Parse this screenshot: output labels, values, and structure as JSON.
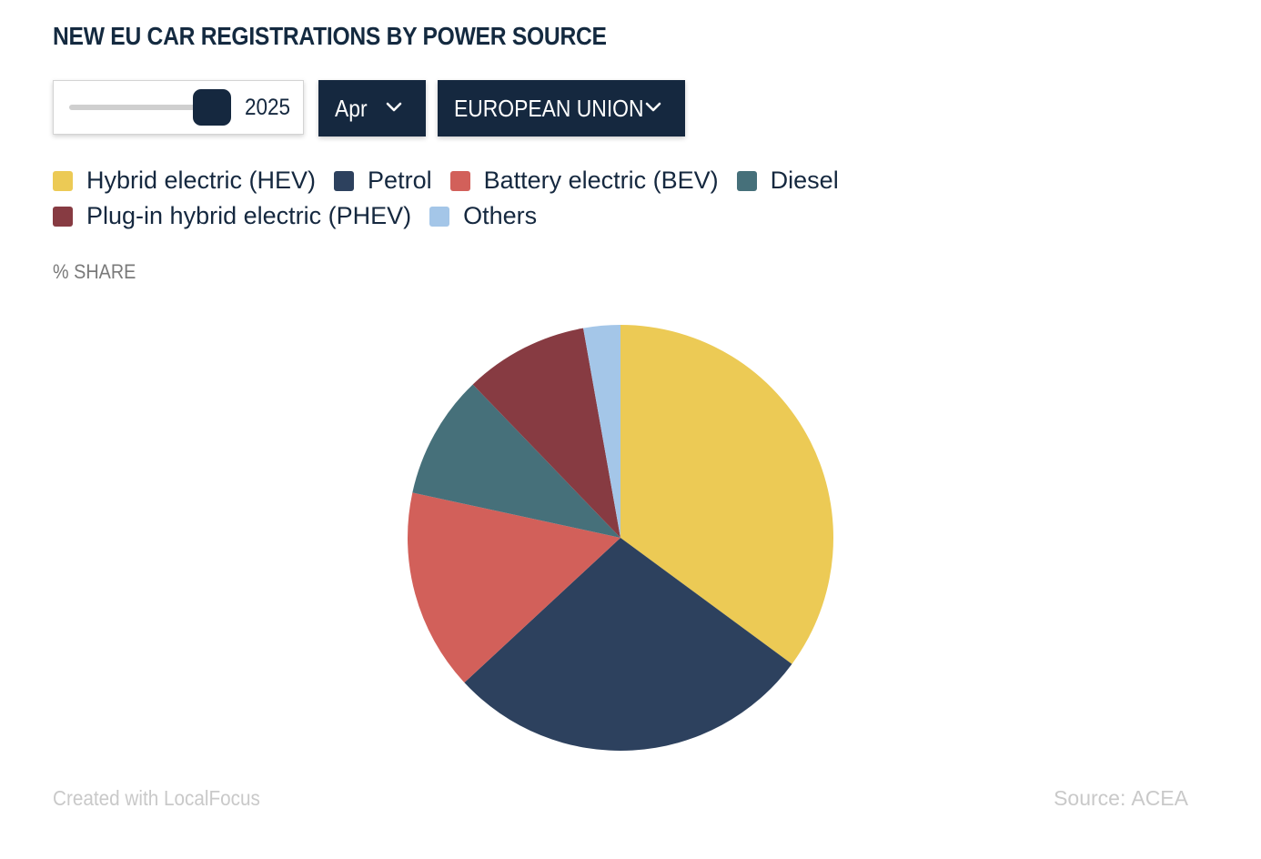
{
  "title": "NEW EU CAR REGISTRATIONS BY POWER SOURCE",
  "controls": {
    "year": "2025",
    "month": "Apr",
    "region": "EUROPEAN UNION"
  },
  "unit_label": "% SHARE",
  "footer": {
    "credit": "Created with LocalFocus",
    "source_label": "Source:",
    "source_value": "ACEA"
  },
  "chart_data": {
    "type": "pie",
    "title": "NEW EU CAR REGISTRATIONS BY POWER SOURCE",
    "unit": "% SHARE",
    "legend_position": "top-left",
    "categories": [
      "Hybrid electric (HEV)",
      "Petrol",
      "Battery electric (BEV)",
      "Diesel",
      "Plug-in hybrid electric (PHEV)",
      "Others"
    ],
    "values": [
      35.1,
      28.0,
      15.3,
      9.4,
      9.4,
      2.8
    ],
    "colors": [
      "#ecca55",
      "#2d415e",
      "#d2605a",
      "#46707a",
      "#873b42",
      "#a4c6e8"
    ]
  }
}
